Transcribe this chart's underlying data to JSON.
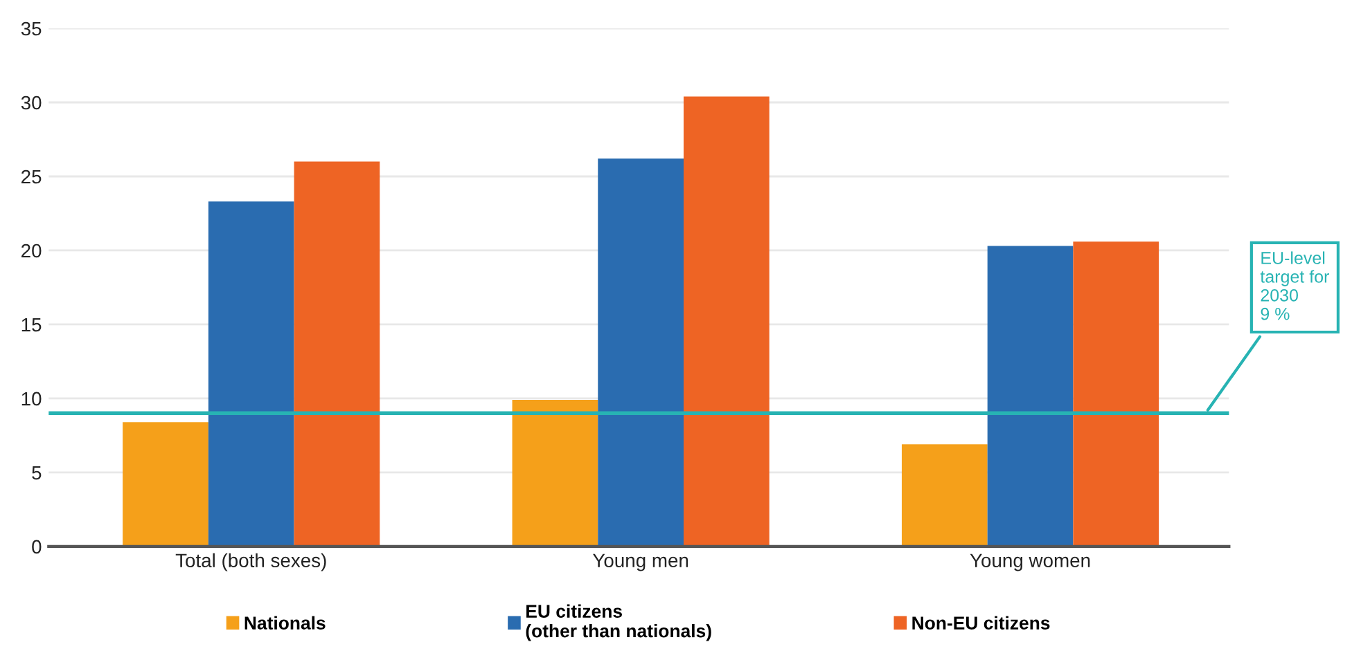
{
  "chart_data": {
    "type": "bar",
    "categories": [
      "Total (both sexes)",
      "Young men",
      "Young women"
    ],
    "series": [
      {
        "name": "Nationals",
        "color": "#f5a01a",
        "values": [
          8.4,
          9.9,
          6.9
        ]
      },
      {
        "name": "EU citizens\n(other than nationals)",
        "color": "#2a6cb0",
        "values": [
          23.3,
          26.2,
          20.3
        ]
      },
      {
        "name": "Non-EU citizens",
        "color": "#ee6424",
        "values": [
          26.0,
          30.4,
          20.6
        ]
      }
    ],
    "ylim": [
      0,
      35
    ],
    "yticks": [
      0,
      5,
      10,
      15,
      20,
      25,
      30,
      35
    ],
    "grid": "y",
    "legend": "bottom",
    "ref_lines": [
      {
        "axis": "y",
        "value": 9,
        "label": "EU-level\ntarget for\n2030\n9 %",
        "color": "#27b3b3"
      }
    ]
  }
}
